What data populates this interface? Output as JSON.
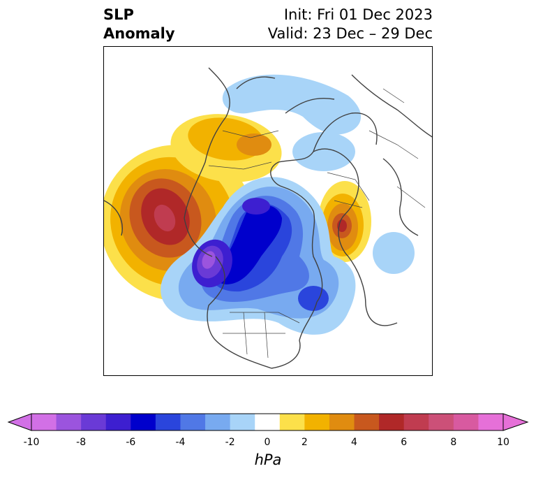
{
  "header": {
    "title_line1": "SLP",
    "title_line2": "Anomaly",
    "init_text": "Init: Fri 01 Dec 2023",
    "valid_text": "Valid: 23 Dec – 29 Dec"
  },
  "map": {
    "projection": "north-polar-stereographic",
    "features": [
      {
        "name": "north-pacific-high-anomaly",
        "sign": "positive",
        "peak_hPa": 7
      },
      {
        "name": "alaska-low-anomaly",
        "sign": "negative",
        "peak_hPa": -9
      },
      {
        "name": "arctic-low-anomaly",
        "sign": "negative",
        "peak_hPa": -6
      },
      {
        "name": "greenland-low-anomaly",
        "sign": "negative",
        "peak_hPa": -4
      },
      {
        "name": "europe-high-anomaly",
        "sign": "positive",
        "peak_hPa": 5
      },
      {
        "name": "russia-high-anomaly",
        "sign": "positive",
        "peak_hPa": 3
      },
      {
        "name": "siberia-low-anomaly",
        "sign": "negative",
        "peak_hPa": -2
      }
    ]
  },
  "colorbar": {
    "units": "hPa",
    "levels": [
      -10,
      -9,
      -8,
      -7,
      -6,
      -5,
      -4,
      -3,
      -2,
      -1,
      1,
      2,
      3,
      4,
      5,
      6,
      7,
      8,
      9,
      10
    ],
    "colors": [
      "#d270e6",
      "#9b54de",
      "#6a3ad6",
      "#3d1fd0",
      "#0000cc",
      "#2a45dc",
      "#5078e6",
      "#78aaf0",
      "#a8d4f8",
      "#ffffff",
      "#fce04a",
      "#f2b200",
      "#e08c10",
      "#c8581e",
      "#b02828",
      "#c03c50",
      "#cc5078",
      "#d85aa0",
      "#e670d8"
    ],
    "tick_labels": [
      "-10",
      "-8",
      "-6",
      "-4",
      "-2",
      "0",
      "2",
      "4",
      "6",
      "8",
      "10"
    ],
    "tick_values": [
      -10,
      -8,
      -6,
      -4,
      -2,
      0,
      2,
      4,
      6,
      8,
      10
    ]
  }
}
